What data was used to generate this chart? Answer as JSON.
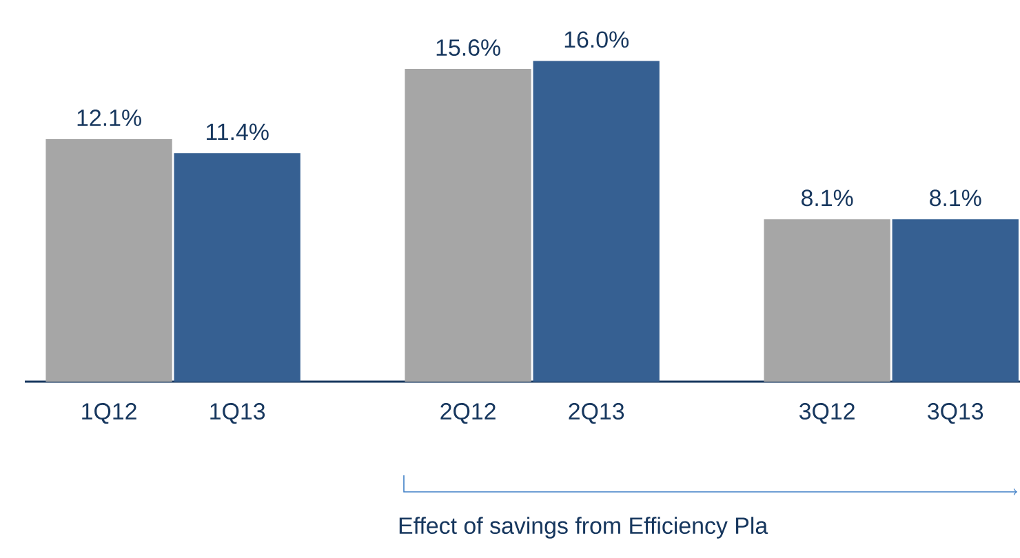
{
  "chart_data": {
    "type": "bar",
    "categories": [
      "1Q12",
      "1Q13",
      "2Q12",
      "2Q13",
      "3Q12",
      "3Q13"
    ],
    "values": [
      12.1,
      11.4,
      15.6,
      16.0,
      8.1,
      8.1
    ],
    "colors": [
      "#a6a6a6",
      "#366092",
      "#a6a6a6",
      "#366092",
      "#a6a6a6",
      "#366092"
    ],
    "value_labels": [
      "12.1%",
      "11.4%",
      "15.6%",
      "16.0%",
      "8.1%",
      "8.1%"
    ],
    "annotations": [
      "Effect of savings from Efficiency Pla"
    ]
  }
}
